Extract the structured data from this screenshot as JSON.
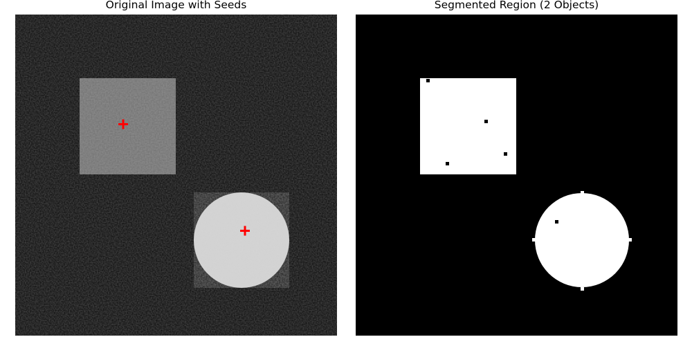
{
  "figure": {
    "left_panel": {
      "title": "Original Image with Seeds",
      "image_description": "noisy grayscale image: dark background, mid-gray square, bright circle",
      "seed_color": "#ff0000",
      "seed_marker": "plus",
      "seeds": [
        {
          "object": "square"
        },
        {
          "object": "circle"
        }
      ]
    },
    "right_panel": {
      "title": "Segmented Region (2 Objects)",
      "image_description": "binary mask: white square and white circle on black background",
      "foreground_color": "#ffffff",
      "background_color": "#000000"
    }
  }
}
